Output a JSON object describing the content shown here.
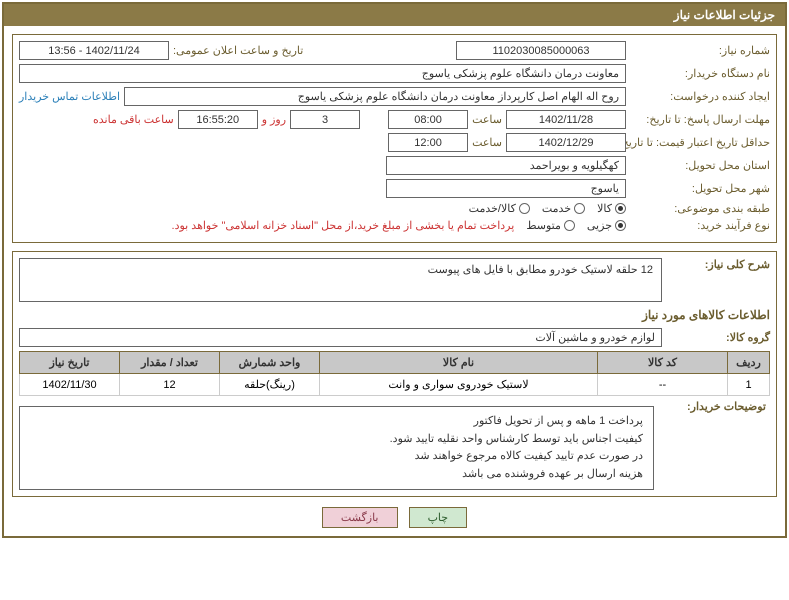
{
  "header": {
    "title": "جزئیات اطلاعات نیاز"
  },
  "fields": {
    "need_no_label": "شماره نیاز:",
    "need_no": "1102030085000063",
    "announce_label": "تاریخ و ساعت اعلان عمومی:",
    "announce_val": "1402/11/24 - 13:56",
    "buyer_org_label": "نام دستگاه خریدار:",
    "buyer_org": "معاونت درمان دانشگاه علوم پزشکی یاسوج",
    "requester_label": "ایجاد کننده درخواست:",
    "requester": "روح اله الهام اصل کارپرداز معاونت درمان دانشگاه علوم پزشکی یاسوج",
    "buyer_contact_link": "اطلاعات تماس خریدار",
    "deadline_resp_label": "مهلت ارسال پاسخ: تا تاریخ:",
    "deadline_resp_date": "1402/11/28",
    "time_label": "ساعت",
    "deadline_resp_time": "08:00",
    "remaining_days": "3",
    "days_and_label": "روز و",
    "remaining_time": "16:55:20",
    "remaining_label": "ساعت باقی مانده",
    "validity_label": "حداقل تاریخ اعتبار قیمت: تا تاریخ:",
    "validity_date": "1402/12/29",
    "validity_time": "12:00",
    "province_label": "استان محل تحویل:",
    "province": "کهگیلویه و بویراحمد",
    "city_label": "شهر محل تحویل:",
    "city": "یاسوج",
    "category_label": "طبقه بندی موضوعی:",
    "radio_goods": "کالا",
    "radio_service": "خدمت",
    "radio_goods_service": "کالا/خدمت",
    "process_label": "نوع فرآیند خرید:",
    "radio_partial": "جزیی",
    "radio_medium": "متوسط",
    "process_note": "پرداخت تمام یا بخشی از مبلغ خرید،از محل \"اسناد خزانه اسلامی\" خواهد بود.",
    "desc_label": "شرح کلی نیاز:",
    "desc_text": "12 حلقه لاستیک خودرو مطابق با فایل های پیوست",
    "goods_section_title": "اطلاعات کالاهای مورد نیاز",
    "group_label": "گروه کالا:",
    "group_val": "لوازم خودرو و ماشین آلات"
  },
  "table": {
    "headers": [
      "ردیف",
      "کد کالا",
      "نام کالا",
      "واحد شمارش",
      "تعداد / مقدار",
      "تاریخ نیاز"
    ],
    "rows": [
      [
        "1",
        "--",
        "لاستیک خودروی سواری و وانت",
        "(رینگ)حلقه",
        "12",
        "1402/11/30"
      ]
    ],
    "col_widths": [
      "42px",
      "130px",
      "auto",
      "100px",
      "100px",
      "100px"
    ]
  },
  "buyer_notes": {
    "label": "توضیحات خریدار:",
    "lines": [
      "پرداخت 1 ماهه و پس از تحویل فاکتور",
      "کیفیت اجناس باید توسط کارشناس واحد نقلیه تایید شود.",
      "در صورت عدم تایید کیفیت کالاه مرجوع خواهند شد",
      "هزینه ارسال بر عهده فروشنده می باشد"
    ]
  },
  "buttons": {
    "print": "چاپ",
    "back": "بازگشت"
  },
  "colors": {
    "header_bg": "#8b7a47",
    "border": "#7a6a3a",
    "label": "#6b5d2f",
    "link": "#2a7fb8",
    "error": "#cc3333",
    "th_bg": "#c8c8c8"
  },
  "watermark": {
    "text1": "AriaTender",
    "text2": ".net",
    "text_color": "#444444",
    "accent_color": "#d94a3a",
    "opacity": 0.22
  }
}
